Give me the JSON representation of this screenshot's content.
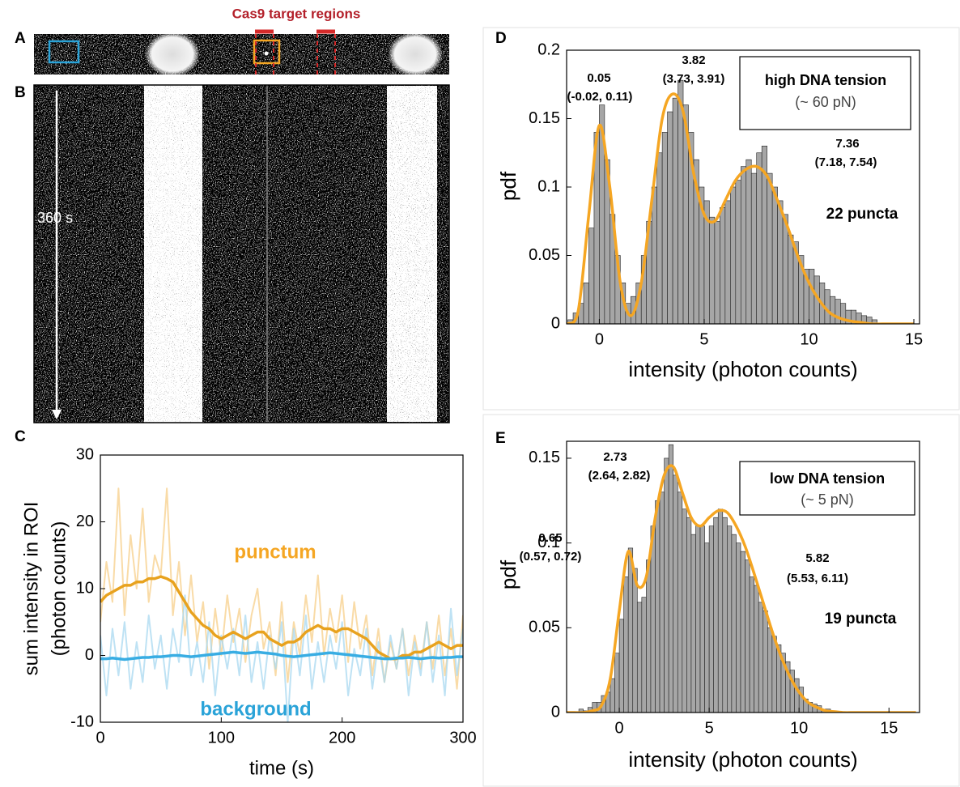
{
  "panel_labels": [
    "A",
    "B",
    "C",
    "D",
    "E"
  ],
  "kymograph": {
    "title": "Cas9 target regions",
    "time_label": "360 s"
  },
  "chart_data": [
    {
      "type": "line",
      "xlabel": "time (s)",
      "ylabel": [
        "sum intensity in ROI",
        "(photon counts)"
      ],
      "xlim": [
        0,
        300
      ],
      "ylim": [
        -10,
        30
      ],
      "xticks": [
        0,
        100,
        200,
        300
      ],
      "yticks": [
        -10,
        0,
        10,
        20,
        30
      ],
      "x": [
        0,
        5,
        10,
        15,
        20,
        25,
        30,
        35,
        40,
        45,
        50,
        55,
        60,
        65,
        70,
        75,
        80,
        85,
        90,
        95,
        100,
        105,
        110,
        115,
        120,
        125,
        130,
        135,
        140,
        145,
        150,
        155,
        160,
        165,
        170,
        175,
        180,
        185,
        190,
        195,
        200,
        205,
        210,
        215,
        220,
        225,
        230,
        235,
        240,
        245,
        250,
        255,
        260,
        265,
        270,
        275,
        280,
        285,
        290,
        295,
        300
      ],
      "series": [
        {
          "color": "#f7cf8a",
          "values": [
            5,
            14,
            8,
            25,
            6,
            18,
            10,
            22,
            8,
            15,
            12,
            25,
            6,
            14,
            3,
            12,
            2,
            8,
            -2,
            7,
            0,
            9,
            2,
            7,
            -1,
            6,
            10,
            1,
            5,
            -3,
            8,
            -4,
            5,
            0,
            9,
            2,
            12,
            0,
            7,
            2,
            9,
            -1,
            8,
            1,
            6,
            -3,
            4,
            -4,
            2,
            -2,
            4,
            -3,
            3,
            -2,
            5,
            -2,
            6,
            -3,
            4,
            -5,
            6
          ]
        },
        {
          "color": "#a8d8f0",
          "values": [
            3,
            -6,
            4,
            -3,
            5,
            -5,
            2,
            -4,
            6,
            -2,
            3,
            -5,
            4,
            -1,
            9,
            -3,
            2,
            -4,
            5,
            -6,
            3,
            -2,
            4,
            -3,
            6,
            -4,
            2,
            -5,
            3,
            -2,
            5,
            -10,
            4,
            -3,
            6,
            -5,
            2,
            -4,
            3,
            -2,
            5,
            -6,
            1,
            -3,
            4,
            -5,
            2,
            -4,
            3,
            -2,
            4,
            -6,
            2,
            -3,
            5,
            -4,
            3,
            -6,
            7,
            -3,
            4
          ]
        },
        {
          "name": "punctum",
          "color": "#e8a21e",
          "values": [
            8,
            9,
            9.5,
            10,
            10.5,
            10.5,
            11,
            11,
            11.5,
            11.5,
            11.8,
            11.5,
            11,
            9.5,
            8,
            6.5,
            5.5,
            4.5,
            4,
            3,
            2.5,
            3,
            3.5,
            3,
            2.5,
            3,
            3.5,
            3.5,
            2.5,
            2,
            1.5,
            2,
            2,
            2.5,
            3.5,
            4,
            4.5,
            4,
            4,
            3.5,
            4,
            4,
            3.5,
            3,
            2.5,
            1.5,
            0.5,
            0,
            -0.5,
            -0.5,
            0,
            0,
            0.5,
            0.5,
            1,
            1.5,
            2,
            1.5,
            1,
            1.5,
            1.5
          ]
        },
        {
          "name": "background",
          "color": "#38ade3",
          "values": [
            -0.5,
            -0.5,
            -0.4,
            -0.5,
            -0.6,
            -0.5,
            -0.4,
            -0.3,
            -0.3,
            -0.2,
            -0.2,
            -0.1,
            0,
            0,
            -0.1,
            -0.2,
            -0.1,
            0,
            0.1,
            0.2,
            0.3,
            0.4,
            0.5,
            0.4,
            0.3,
            0.4,
            0.5,
            0.4,
            0.3,
            0.2,
            0,
            -0.1,
            -0.2,
            -0.1,
            0,
            0.1,
            0.2,
            0.3,
            0.4,
            0.3,
            0.2,
            0.1,
            0,
            -0.1,
            -0.2,
            -0.3,
            -0.4,
            -0.5,
            -0.5,
            -0.4,
            -0.4,
            -0.3,
            -0.4,
            -0.5,
            -0.4,
            -0.3,
            -0.4,
            -0.3,
            -0.3,
            -0.2,
            -0.2
          ]
        }
      ]
    },
    {
      "type": "histogram",
      "xlabel": "intensity (photon counts)",
      "ylabel": "pdf",
      "xlim": [
        -1.56,
        15.27
      ],
      "ylim": [
        0,
        0.2
      ],
      "xticks": [
        0,
        5,
        10,
        15
      ],
      "yticks": [
        0,
        0.05,
        0.1,
        0.15,
        0.2
      ],
      "color": "#a6a6a6",
      "bins": [
        -1.5,
        -1.25,
        -1,
        -0.75,
        -0.5,
        -0.25,
        0,
        0.25,
        0.5,
        0.75,
        1,
        1.25,
        1.5,
        1.75,
        2,
        2.25,
        2.5,
        2.75,
        3,
        3.25,
        3.5,
        3.75,
        4,
        4.25,
        4.5,
        4.75,
        5,
        5.25,
        5.5,
        5.75,
        6,
        6.25,
        6.5,
        6.75,
        7,
        7.25,
        7.5,
        7.75,
        8,
        8.25,
        8.5,
        8.75,
        9,
        9.25,
        9.5,
        9.75,
        10,
        10.25,
        10.5,
        10.75,
        11,
        11.25,
        11.5,
        11.75,
        12,
        12.25,
        12.5,
        12.75,
        13,
        13.25
      ],
      "values": [
        0.003,
        0.008,
        0.015,
        0.03,
        0.07,
        0.14,
        0.16,
        0.12,
        0.08,
        0.05,
        0.03,
        0.015,
        0.02,
        0.03,
        0.05,
        0.075,
        0.1,
        0.125,
        0.14,
        0.155,
        0.165,
        0.178,
        0.16,
        0.14,
        0.12,
        0.1,
        0.09,
        0.078,
        0.075,
        0.085,
        0.09,
        0.1,
        0.105,
        0.115,
        0.12,
        0.11,
        0.125,
        0.13,
        0.11,
        0.1,
        0.09,
        0.08,
        0.065,
        0.06,
        0.05,
        0.04,
        0.04,
        0.035,
        0.03,
        0.025,
        0.02,
        0.018,
        0.015,
        0.01,
        0.01,
        0.008,
        0.006,
        0.005,
        0.003
      ],
      "fit": {
        "color": "#f5a623",
        "x": [
          -1.5,
          -1,
          -0.5,
          0,
          0.5,
          1,
          1.5,
          2,
          2.5,
          3,
          3.5,
          4,
          4.5,
          5,
          5.5,
          6,
          6.5,
          7,
          7.5,
          8,
          8.5,
          9,
          9.5,
          10,
          10.5,
          11,
          11.5,
          12,
          12.5,
          13,
          13.5,
          14,
          14.5,
          15
        ],
        "values": [
          0,
          0.01,
          0.08,
          0.145,
          0.1,
          0.03,
          0.006,
          0.03,
          0.09,
          0.15,
          0.168,
          0.155,
          0.11,
          0.08,
          0.075,
          0.09,
          0.105,
          0.113,
          0.115,
          0.108,
          0.09,
          0.07,
          0.048,
          0.03,
          0.017,
          0.008,
          0.004,
          0.002,
          0.001,
          0,
          0,
          0,
          0,
          0
        ]
      },
      "annotations": [
        "0.05",
        "(-0.02, 0.11)",
        "3.82",
        "(3.73, 3.91)",
        "7.36",
        "(7.18, 7.54)"
      ],
      "legend_text": [
        "high DNA tension",
        "(~ 60 pN)"
      ],
      "count_label": "22 puncta"
    },
    {
      "type": "histogram",
      "xlabel": "intensity (photon counts)",
      "ylabel": "pdf",
      "xlim": [
        -2.93,
        16.7
      ],
      "ylim": [
        0,
        0.16
      ],
      "xticks": [
        0,
        5,
        10,
        15
      ],
      "yticks": [
        0,
        0.05,
        0.1,
        0.15
      ],
      "color": "#a6a6a6",
      "bins": [
        -2.25,
        -2,
        -1.75,
        -1.5,
        -1.25,
        -1,
        -0.75,
        -0.5,
        -0.25,
        0,
        0.25,
        0.5,
        0.75,
        1,
        1.25,
        1.5,
        1.75,
        2,
        2.25,
        2.5,
        2.75,
        3,
        3.25,
        3.5,
        3.75,
        4,
        4.25,
        4.5,
        4.75,
        5,
        5.25,
        5.5,
        5.75,
        6,
        6.25,
        6.5,
        6.75,
        7,
        7.25,
        7.5,
        7.75,
        8,
        8.25,
        8.5,
        8.75,
        9,
        9.25,
        9.5,
        9.75,
        10,
        10.25,
        10.5,
        10.75,
        11,
        11.25,
        11.5,
        11.75
      ],
      "values": [
        0.002,
        0.001,
        0.003,
        0.006,
        0.006,
        0.01,
        0.012,
        0.02,
        0.035,
        0.055,
        0.08,
        0.097,
        0.085,
        0.065,
        0.068,
        0.09,
        0.11,
        0.125,
        0.13,
        0.15,
        0.158,
        0.14,
        0.13,
        0.12,
        0.115,
        0.105,
        0.11,
        0.11,
        0.1,
        0.11,
        0.115,
        0.12,
        0.115,
        0.11,
        0.105,
        0.1,
        0.095,
        0.09,
        0.08,
        0.075,
        0.065,
        0.06,
        0.05,
        0.045,
        0.04,
        0.035,
        0.03,
        0.025,
        0.02,
        0.015,
        0.008,
        0.006,
        0.005,
        0.004,
        0.002,
        0.002
      ],
      "fit": {
        "color": "#f5a623",
        "x": [
          -3,
          -2.5,
          -2,
          -1.5,
          -1,
          -0.5,
          0,
          0.5,
          1,
          1.5,
          2,
          2.5,
          3,
          3.5,
          4,
          4.5,
          5,
          5.5,
          6,
          6.5,
          7,
          7.5,
          8,
          8.5,
          9,
          9.5,
          10,
          10.5,
          11,
          11.5,
          12,
          12.5,
          13,
          13.5,
          14,
          14.5,
          15,
          15.5,
          16,
          16.5
        ],
        "values": [
          0,
          0,
          0,
          0.001,
          0.004,
          0.02,
          0.06,
          0.095,
          0.075,
          0.08,
          0.115,
          0.14,
          0.145,
          0.13,
          0.115,
          0.11,
          0.115,
          0.119,
          0.118,
          0.11,
          0.098,
          0.082,
          0.065,
          0.048,
          0.033,
          0.021,
          0.012,
          0.006,
          0.003,
          0.001,
          0.0005,
          0,
          0,
          0,
          0,
          0,
          0,
          0,
          0,
          0
        ]
      },
      "annotations": [
        "2.73",
        "(2.64, 2.82)",
        "0.65",
        "(0.57, 0.72)",
        "5.82",
        "(5.53, 6.11)"
      ],
      "legend_text": [
        "low DNA tension",
        "(~ 5 pN)"
      ],
      "count_label": "19 puncta"
    }
  ]
}
